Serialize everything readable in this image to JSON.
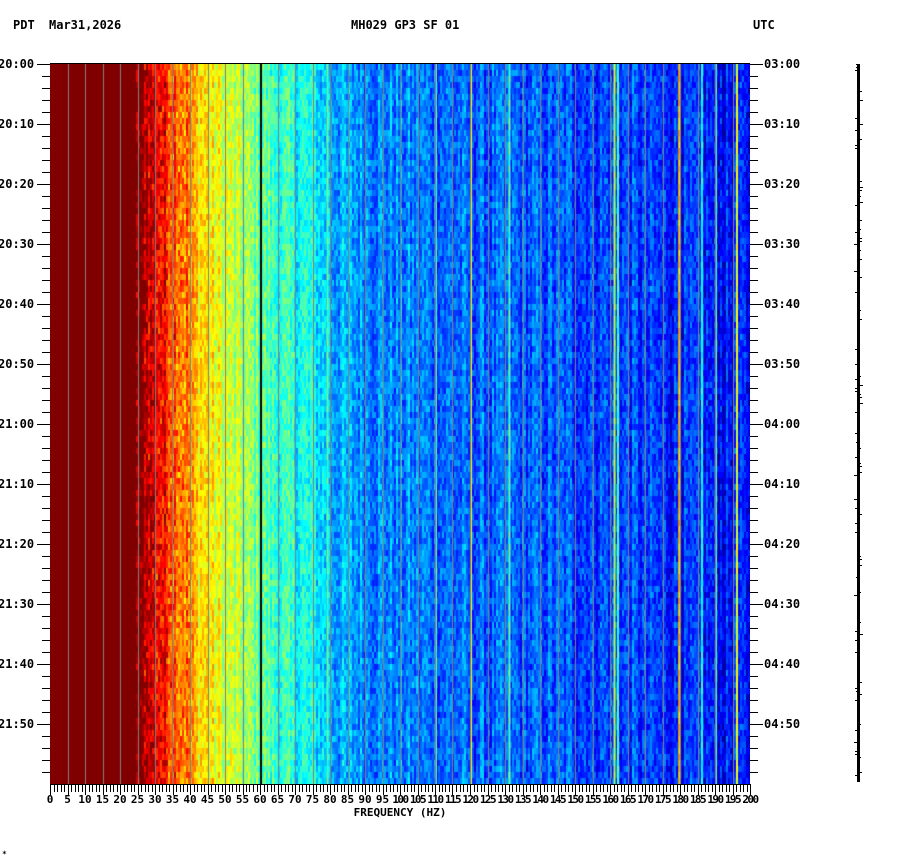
{
  "header": {
    "timezone_left": "PDT",
    "date": "Mar31,2026",
    "station": "MH029 GP3 SF 01",
    "timezone_right": "UTC"
  },
  "footer_mark": "✶",
  "colors": {
    "background": "#ffffff",
    "axis": "#000000",
    "grid_line": "#808080",
    "line_60hz": "#000000",
    "saturated_low_freq": "#800000"
  },
  "chart_data": {
    "type": "heatmap",
    "title": "MH029 GP3 SF 01",
    "xlabel": "FREQUENCY (HZ)",
    "ylabel_left": "PDT",
    "ylabel_right": "UTC",
    "xlim": [
      0,
      200
    ],
    "x_ticks": [
      0,
      5,
      10,
      15,
      20,
      25,
      30,
      35,
      40,
      45,
      50,
      55,
      60,
      65,
      70,
      75,
      80,
      85,
      90,
      95,
      100,
      105,
      110,
      115,
      120,
      125,
      130,
      135,
      140,
      145,
      150,
      155,
      160,
      165,
      170,
      175,
      180,
      185,
      190,
      195,
      200
    ],
    "x_minor_tick_step": 1,
    "y_range_minutes": [
      0,
      120
    ],
    "y_ticks_left": [
      "20:00",
      "20:10",
      "20:20",
      "20:30",
      "20:40",
      "20:50",
      "21:00",
      "21:10",
      "21:20",
      "21:30",
      "21:40",
      "21:50"
    ],
    "y_ticks_right": [
      "03:00",
      "03:10",
      "03:20",
      "03:30",
      "03:40",
      "03:50",
      "04:00",
      "04:10",
      "04:20",
      "04:30",
      "04:40",
      "04:50"
    ],
    "y_major_tick_step_minutes": 10,
    "y_minor_tick_step_minutes": 2,
    "vertical_grid_lines_hz": [
      5,
      10,
      15,
      20,
      25,
      30,
      35,
      40,
      45,
      50,
      55,
      65,
      70,
      75,
      80,
      85,
      90,
      95,
      100,
      105,
      110,
      115,
      120,
      125,
      130,
      135,
      140,
      145,
      150,
      155,
      160,
      165,
      170,
      175,
      180,
      185,
      190,
      195
    ],
    "black_line_hz": 60,
    "colormap": "jet",
    "power_profile": [
      {
        "hz": 0,
        "level": 1.0
      },
      {
        "hz": 24,
        "level": 1.0
      },
      {
        "hz": 28,
        "level": 0.92
      },
      {
        "hz": 35,
        "level": 0.8
      },
      {
        "hz": 42,
        "level": 0.68
      },
      {
        "hz": 50,
        "level": 0.58
      },
      {
        "hz": 58,
        "level": 0.5
      },
      {
        "hz": 65,
        "level": 0.42
      },
      {
        "hz": 75,
        "level": 0.38
      },
      {
        "hz": 80,
        "level": 0.3
      },
      {
        "hz": 95,
        "level": 0.26
      },
      {
        "hz": 120,
        "level": 0.22
      },
      {
        "hz": 160,
        "level": 0.2
      },
      {
        "hz": 180,
        "level": 0.16
      },
      {
        "hz": 200,
        "level": 0.13
      }
    ],
    "narrowband_lines": [
      {
        "hz": 79,
        "level": 0.45
      },
      {
        "hz": 110,
        "level": 0.45
      },
      {
        "hz": 120,
        "level": 0.6
      },
      {
        "hz": 131,
        "level": 0.45
      },
      {
        "hz": 161,
        "level": 0.55
      },
      {
        "hz": 162,
        "level": 0.45
      },
      {
        "hz": 179.5,
        "level": 0.68
      },
      {
        "hz": 186,
        "level": 0.4
      },
      {
        "hz": 190,
        "level": 0.45
      },
      {
        "hz": 196,
        "level": 0.6
      }
    ],
    "side_trace": "vertical seismogram trace at x≈858, spanning 20:00–22:00"
  }
}
